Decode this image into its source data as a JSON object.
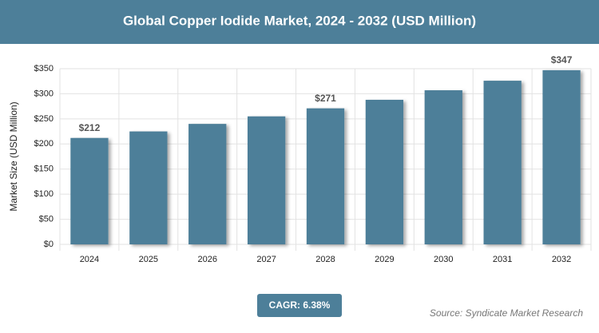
{
  "chart_data": {
    "type": "bar",
    "title": "Global Copper Iodide Market, 2024 - 2032 (USD Million)",
    "y_label": "Market Size (USD Million)",
    "categories": [
      "2024",
      "2025",
      "2026",
      "2027",
      "2028",
      "2029",
      "2030",
      "2031",
      "2032"
    ],
    "values": [
      212,
      225,
      240,
      255,
      271,
      288,
      307,
      326,
      347
    ],
    "value_labels": [
      "$212",
      null,
      null,
      null,
      "$271",
      null,
      null,
      null,
      "$347"
    ],
    "color": "#4d7f99",
    "ylim": [
      0,
      350
    ],
    "yticks": [
      {
        "value": 0,
        "label": "$0"
      },
      {
        "value": 50,
        "label": "$50"
      },
      {
        "value": 100,
        "label": "$100"
      },
      {
        "value": 150,
        "label": "$150"
      },
      {
        "value": 200,
        "label": "$200"
      },
      {
        "value": 250,
        "label": "$250"
      },
      {
        "value": 300,
        "label": "$300"
      },
      {
        "value": 350,
        "label": "$350"
      }
    ],
    "grid": true,
    "cagr_label": "CAGR: 6.38%",
    "source": "Source: Syndicate Market Research"
  }
}
